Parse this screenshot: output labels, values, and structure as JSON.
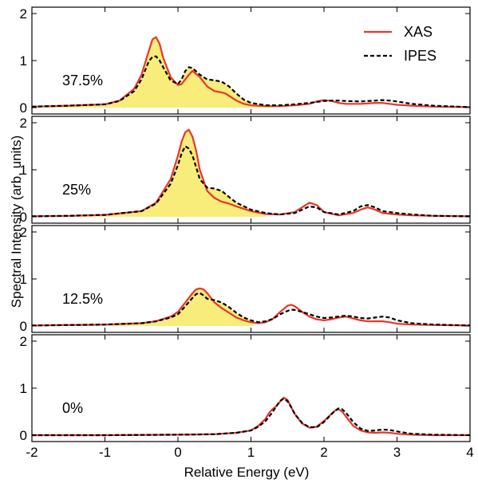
{
  "chart_data": {
    "type": "line",
    "xlabel": "Relative Energy (eV)",
    "ylabel": "Spectral Intensity (arb. units)",
    "xlim": [
      -2,
      4
    ],
    "xticks": [
      "-2",
      "-1",
      "0",
      "1",
      "2",
      "3",
      "4"
    ],
    "yticks": [
      "0",
      "1",
      "2"
    ],
    "legend": {
      "position": "top-right",
      "entries": [
        "XAS",
        "IPES"
      ]
    },
    "colors": {
      "xas": "#e8372a",
      "ipes": "#000000",
      "fill": "#f8ec7a"
    },
    "panels": [
      {
        "label": "37.5%",
        "ylim": [
          0,
          2
        ],
        "fill_to": 1.35,
        "x": [
          -2.0,
          -1.5,
          -1.0,
          -0.8,
          -0.6,
          -0.5,
          -0.4,
          -0.35,
          -0.3,
          -0.25,
          -0.2,
          -0.1,
          0.0,
          0.05,
          0.1,
          0.15,
          0.2,
          0.3,
          0.4,
          0.5,
          0.6,
          0.65,
          0.7,
          0.8,
          0.9,
          1.0,
          1.2,
          1.4,
          1.6,
          1.8,
          1.9,
          2.0,
          2.1,
          2.2,
          2.3,
          2.5,
          2.7,
          2.8,
          2.9,
          3.0,
          3.2,
          3.5,
          4.0
        ],
        "series": [
          {
            "name": "XAS",
            "values": [
              0.02,
              0.04,
              0.07,
              0.15,
              0.4,
              0.7,
              1.2,
              1.45,
              1.5,
              1.35,
              1.05,
              0.65,
              0.48,
              0.5,
              0.6,
              0.7,
              0.78,
              0.65,
              0.45,
              0.35,
              0.32,
              0.3,
              0.25,
              0.15,
              0.08,
              0.05,
              0.03,
              0.03,
              0.05,
              0.08,
              0.13,
              0.16,
              0.14,
              0.1,
              0.08,
              0.08,
              0.1,
              0.1,
              0.08,
              0.06,
              0.04,
              0.02,
              0.01
            ]
          },
          {
            "name": "IPES",
            "values": [
              0.02,
              0.04,
              0.07,
              0.14,
              0.35,
              0.6,
              0.98,
              1.08,
              1.09,
              1.0,
              0.85,
              0.58,
              0.5,
              0.6,
              0.78,
              0.86,
              0.84,
              0.7,
              0.6,
              0.58,
              0.55,
              0.5,
              0.45,
              0.3,
              0.17,
              0.1,
              0.05,
              0.05,
              0.07,
              0.1,
              0.12,
              0.14,
              0.15,
              0.15,
              0.14,
              0.13,
              0.15,
              0.16,
              0.15,
              0.13,
              0.08,
              0.04,
              0.01
            ]
          }
        ]
      },
      {
        "label": "25%",
        "ylim": [
          0,
          2
        ],
        "fill_to": 1.2,
        "x": [
          -2.0,
          -1.5,
          -1.0,
          -0.5,
          -0.3,
          -0.1,
          0.0,
          0.05,
          0.1,
          0.15,
          0.2,
          0.25,
          0.3,
          0.4,
          0.5,
          0.6,
          0.7,
          0.8,
          1.0,
          1.2,
          1.4,
          1.6,
          1.7,
          1.8,
          1.9,
          2.0,
          2.2,
          2.4,
          2.5,
          2.6,
          2.7,
          2.8,
          3.0,
          3.2,
          3.5,
          4.0
        ],
        "series": [
          {
            "name": "XAS",
            "values": [
              0.01,
              0.02,
              0.04,
              0.12,
              0.3,
              0.8,
              1.3,
              1.6,
              1.8,
              1.85,
              1.7,
              1.4,
              1.0,
              0.55,
              0.4,
              0.32,
              0.28,
              0.22,
              0.12,
              0.06,
              0.05,
              0.1,
              0.2,
              0.3,
              0.25,
              0.1,
              0.03,
              0.08,
              0.15,
              0.2,
              0.15,
              0.08,
              0.05,
              0.03,
              0.02,
              0.01
            ]
          },
          {
            "name": "IPES",
            "values": [
              0.01,
              0.02,
              0.04,
              0.12,
              0.28,
              0.7,
              1.1,
              1.35,
              1.5,
              1.45,
              1.3,
              1.05,
              0.8,
              0.62,
              0.6,
              0.55,
              0.42,
              0.3,
              0.15,
              0.08,
              0.05,
              0.08,
              0.15,
              0.22,
              0.2,
              0.1,
              0.05,
              0.12,
              0.22,
              0.25,
              0.2,
              0.12,
              0.08,
              0.05,
              0.02,
              0.01
            ]
          }
        ]
      },
      {
        "label": "12.5%",
        "ylim": [
          0,
          2
        ],
        "fill_to": 1.05,
        "x": [
          -2.0,
          -1.0,
          -0.5,
          -0.3,
          -0.1,
          0.0,
          0.1,
          0.2,
          0.25,
          0.3,
          0.35,
          0.4,
          0.5,
          0.6,
          0.7,
          0.8,
          0.9,
          1.0,
          1.1,
          1.2,
          1.3,
          1.4,
          1.5,
          1.55,
          1.6,
          1.7,
          1.8,
          1.9,
          2.0,
          2.1,
          2.2,
          2.3,
          2.4,
          2.5,
          2.6,
          2.7,
          2.8,
          2.9,
          3.0,
          3.2,
          3.5,
          4.0
        ],
        "series": [
          {
            "name": "XAS",
            "values": [
              0.01,
              0.03,
              0.06,
              0.1,
              0.2,
              0.3,
              0.5,
              0.7,
              0.78,
              0.8,
              0.78,
              0.7,
              0.5,
              0.38,
              0.28,
              0.18,
              0.12,
              0.08,
              0.06,
              0.08,
              0.15,
              0.3,
              0.43,
              0.45,
              0.42,
              0.3,
              0.2,
              0.14,
              0.12,
              0.14,
              0.18,
              0.2,
              0.16,
              0.12,
              0.1,
              0.1,
              0.1,
              0.08,
              0.05,
              0.03,
              0.02,
              0.01
            ]
          },
          {
            "name": "IPES",
            "values": [
              0.01,
              0.03,
              0.06,
              0.1,
              0.18,
              0.25,
              0.42,
              0.6,
              0.68,
              0.7,
              0.65,
              0.58,
              0.55,
              0.5,
              0.4,
              0.28,
              0.18,
              0.12,
              0.08,
              0.1,
              0.15,
              0.25,
              0.32,
              0.35,
              0.34,
              0.3,
              0.25,
              0.2,
              0.17,
              0.18,
              0.2,
              0.22,
              0.2,
              0.17,
              0.16,
              0.18,
              0.2,
              0.18,
              0.12,
              0.06,
              0.03,
              0.01
            ]
          }
        ]
      },
      {
        "label": "0%",
        "ylim": [
          0,
          2
        ],
        "fill_to": null,
        "x": [
          -2.0,
          -1.0,
          0.0,
          0.5,
          0.8,
          1.0,
          1.1,
          1.2,
          1.25,
          1.3,
          1.35,
          1.4,
          1.45,
          1.5,
          1.55,
          1.6,
          1.7,
          1.8,
          1.9,
          2.0,
          2.1,
          2.15,
          2.2,
          2.25,
          2.3,
          2.4,
          2.5,
          2.6,
          2.7,
          2.8,
          2.9,
          3.0,
          3.2,
          3.5,
          4.0
        ],
        "series": [
          {
            "name": "XAS",
            "values": [
              0.0,
              0.0,
              0.01,
              0.02,
              0.05,
              0.1,
              0.2,
              0.35,
              0.48,
              0.56,
              0.62,
              0.72,
              0.8,
              0.75,
              0.6,
              0.45,
              0.25,
              0.16,
              0.18,
              0.3,
              0.45,
              0.52,
              0.55,
              0.5,
              0.4,
              0.2,
              0.1,
              0.06,
              0.05,
              0.06,
              0.05,
              0.03,
              0.01,
              0.0,
              0.0
            ]
          },
          {
            "name": "IPES",
            "values": [
              0.0,
              0.0,
              0.01,
              0.02,
              0.05,
              0.1,
              0.18,
              0.3,
              0.4,
              0.5,
              0.62,
              0.73,
              0.78,
              0.72,
              0.6,
              0.45,
              0.26,
              0.17,
              0.17,
              0.28,
              0.44,
              0.52,
              0.57,
              0.55,
              0.48,
              0.28,
              0.14,
              0.09,
              0.1,
              0.12,
              0.11,
              0.08,
              0.03,
              0.01,
              0.0
            ]
          }
        ]
      }
    ]
  }
}
